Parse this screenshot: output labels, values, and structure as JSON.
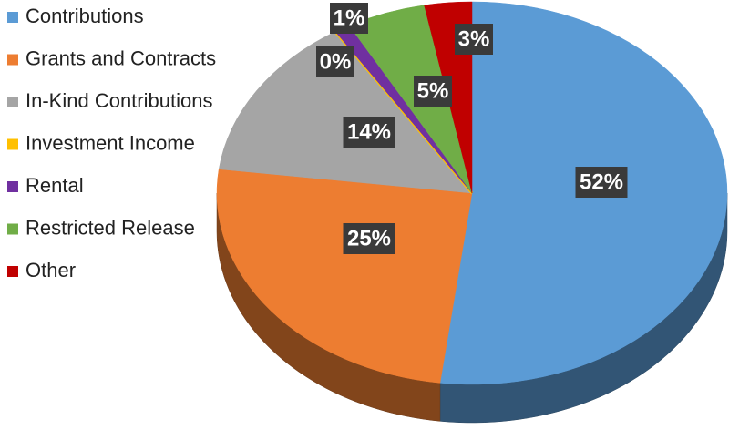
{
  "chart_data": {
    "type": "pie",
    "categories": [
      "Contributions",
      "Grants and Contracts",
      "In-Kind Contributions",
      "Investment Income",
      "Rental",
      "Restricted Release",
      "Other"
    ],
    "values": [
      52,
      25,
      14,
      0,
      1,
      5,
      3
    ],
    "value_labels": [
      "52%",
      "25%",
      "14%",
      "0%",
      "1%",
      "5%",
      "3%"
    ],
    "colors": [
      "#5b9bd5",
      "#ed7d31",
      "#a5a5a5",
      "#ffc000",
      "#7030a0",
      "#70ad47",
      "#c00000"
    ],
    "legend": "left"
  }
}
